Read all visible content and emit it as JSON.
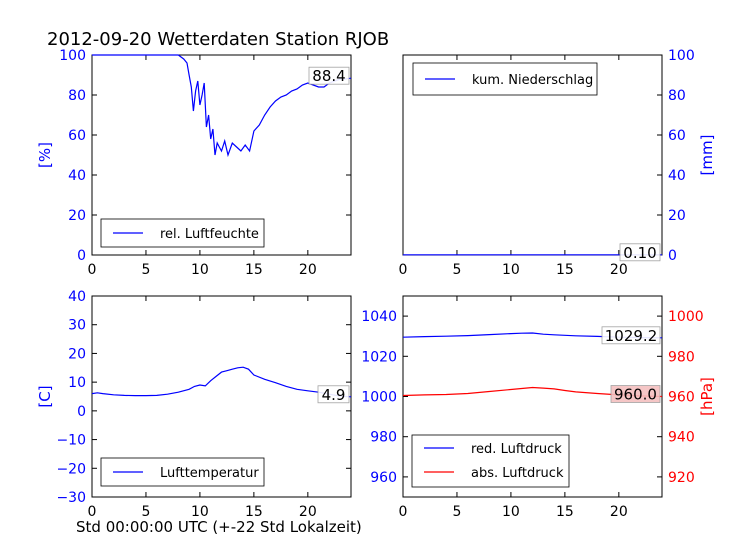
{
  "title": "2012-09-20 Wetterdaten Station RJOB",
  "xlabel": "Std 00:00:00 UTC (+-22 Std Lokalzeit)",
  "colors": {
    "blue": "#0000ff",
    "red": "#ff0000",
    "black": "#000000"
  },
  "chart_data": [
    {
      "id": "humidity",
      "type": "line",
      "ylabel": "[%]",
      "ylabel_color": "#0000ff",
      "xlim": [
        0,
        24
      ],
      "ylim": [
        0,
        100
      ],
      "xticks": [
        0,
        5,
        10,
        15,
        20
      ],
      "yticks": [
        0,
        20,
        40,
        60,
        80,
        100
      ],
      "legend": {
        "position": "lower-center"
      },
      "series": [
        {
          "name": "rel. Luftfeuchte",
          "color": "#0000ff",
          "x": [
            0,
            1,
            2,
            3,
            4,
            5,
            6,
            7,
            8,
            8.5,
            8.8,
            9.0,
            9.2,
            9.4,
            9.6,
            9.8,
            10.0,
            10.2,
            10.4,
            10.6,
            10.8,
            11.0,
            11.2,
            11.4,
            11.6,
            11.8,
            12.0,
            12.3,
            12.6,
            13.0,
            13.4,
            13.8,
            14.2,
            14.6,
            15.0,
            15.5,
            16.0,
            16.5,
            17.0,
            17.5,
            18.0,
            18.5,
            19.0,
            19.5,
            20.0,
            20.5,
            21.0,
            21.5,
            22.0,
            22.5,
            23.0,
            23.5,
            24
          ],
          "y": [
            100,
            100,
            100,
            100,
            100,
            100,
            100,
            100,
            100,
            98,
            96,
            90,
            84,
            72,
            82,
            87,
            75,
            80,
            86,
            64,
            70,
            58,
            63,
            50,
            56,
            54,
            52,
            57,
            50,
            56,
            54,
            52,
            55,
            52,
            62,
            65,
            70,
            74,
            77,
            79,
            80,
            82,
            83,
            85,
            86,
            85,
            84,
            84,
            86,
            87,
            88,
            88,
            88.4
          ],
          "end_value": "88.4"
        }
      ]
    },
    {
      "id": "precipitation",
      "type": "line",
      "ylabel": "[mm]",
      "ylabel_color": "#0000ff",
      "xlim": [
        0,
        24
      ],
      "ylim": [
        0,
        100
      ],
      "xticks": [
        0,
        5,
        10,
        15,
        20
      ],
      "yticks": [
        0,
        20,
        40,
        60,
        80,
        100
      ],
      "legend": {
        "position": "upper-left"
      },
      "series": [
        {
          "name": "kum. Niederschlag",
          "color": "#0000ff",
          "x": [
            0,
            24
          ],
          "y": [
            0.1,
            0.1
          ],
          "end_value": "0.10"
        }
      ]
    },
    {
      "id": "temperature",
      "type": "line",
      "ylabel": "[C]",
      "ylabel_color": "#0000ff",
      "xlim": [
        0,
        24
      ],
      "ylim": [
        -30,
        40
      ],
      "xticks": [
        0,
        5,
        10,
        15,
        20
      ],
      "yticks": [
        -30,
        -20,
        -10,
        0,
        10,
        20,
        30,
        40
      ],
      "legend": {
        "position": "lower-center"
      },
      "series": [
        {
          "name": "Lufttemperatur",
          "color": "#0000ff",
          "x": [
            0,
            0.5,
            1,
            2,
            3,
            4,
            5,
            6,
            7,
            8,
            9,
            9.5,
            10,
            10.5,
            11,
            11.5,
            12,
            12.5,
            13,
            13.5,
            14,
            14.5,
            15,
            16,
            17,
            18,
            19,
            20,
            21,
            22,
            23,
            24
          ],
          "y": [
            6,
            6.3,
            6,
            5.6,
            5.4,
            5.3,
            5.3,
            5.4,
            5.8,
            6.5,
            7.5,
            8.5,
            9,
            8.7,
            10.5,
            12,
            13.5,
            14,
            14.5,
            15,
            15.2,
            14.5,
            12.5,
            11,
            9.8,
            8.5,
            7.5,
            7,
            6.5,
            5.8,
            5.1,
            4.9
          ],
          "end_value": "4.9"
        }
      ]
    },
    {
      "id": "pressure",
      "type": "line",
      "ylabel": "[hPa]",
      "ylabel_color": "#ff0000",
      "xlim": [
        0,
        24
      ],
      "ylim_left": [
        950,
        1050
      ],
      "ylim_right": [
        910,
        1010
      ],
      "xticks": [
        0,
        5,
        10,
        15,
        20
      ],
      "yticks_left": [
        960,
        980,
        1000,
        1020,
        1040
      ],
      "yticks_right": [
        920,
        940,
        960,
        980,
        1000
      ],
      "legend": {
        "position": "lower-left"
      },
      "series": [
        {
          "name": "red. Luftdruck",
          "color": "#0000ff",
          "axis": "left",
          "x": [
            0,
            2,
            4,
            6,
            8,
            10,
            11,
            12,
            13,
            14,
            16,
            18,
            20,
            22,
            24
          ],
          "y": [
            1029.5,
            1029.8,
            1030,
            1030.3,
            1030.8,
            1031.3,
            1031.5,
            1031.6,
            1031,
            1030.7,
            1030.2,
            1029.9,
            1029.5,
            1029.3,
            1029.2
          ],
          "end_value": "1029.2"
        },
        {
          "name": "abs. Luftdruck",
          "color": "#ff0000",
          "axis": "right",
          "x": [
            0,
            2,
            4,
            6,
            8,
            10,
            11,
            12,
            13,
            14,
            15,
            16,
            18,
            20,
            22,
            24
          ],
          "y": [
            960.5,
            960.8,
            961,
            961.5,
            962.5,
            963.5,
            964,
            964.5,
            964.2,
            963.8,
            963,
            962.3,
            961.5,
            960.8,
            960.3,
            960.0
          ],
          "end_value": "960.0"
        }
      ]
    }
  ]
}
